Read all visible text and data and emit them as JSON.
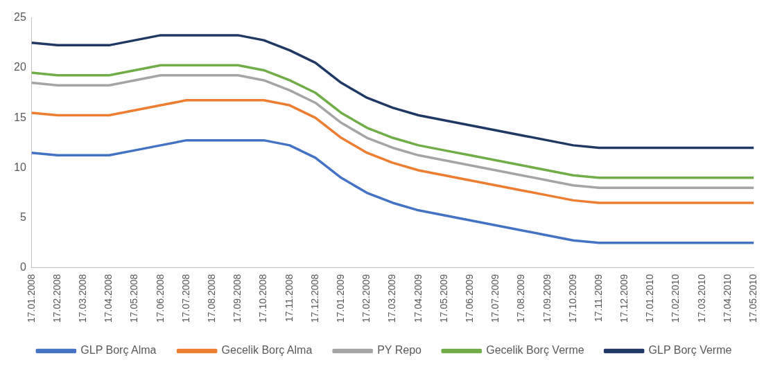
{
  "chart_data": {
    "type": "line",
    "categories": [
      "17.01.2008",
      "17.02.2008",
      "17.03.2008",
      "17.04.2008",
      "17.05.2008",
      "17.06.2008",
      "17.07.2008",
      "17.08.2008",
      "17.09.2008",
      "17.10.2008",
      "17.11.2008",
      "17.12.2008",
      "17.01.2009",
      "17.02.2009",
      "17.03.2009",
      "17.04.2009",
      "17.05.2009",
      "17.06.2009",
      "17.07.2009",
      "17.08.2009",
      "17.09.2009",
      "17.10.2009",
      "17.11.2009",
      "17.12.2009",
      "17.01.2010",
      "17.02.2010",
      "17.03.2010",
      "17.04.2010",
      "17.05.2010"
    ],
    "series": [
      {
        "name": "GLP Borç Alma",
        "color": "#4472c4",
        "values": [
          11.5,
          11.25,
          11.25,
          11.25,
          11.75,
          12.25,
          12.75,
          12.75,
          12.75,
          12.75,
          12.25,
          11,
          9,
          7.5,
          6.5,
          5.75,
          5.25,
          4.75,
          4.25,
          3.75,
          3.25,
          2.75,
          2.5,
          2.5,
          2.5,
          2.5,
          2.5,
          2.5,
          2.5
        ]
      },
      {
        "name": "Gecelik Borç Alma",
        "color": "#ed7d31",
        "values": [
          15.5,
          15.25,
          15.25,
          15.25,
          15.75,
          16.25,
          16.75,
          16.75,
          16.75,
          16.75,
          16.25,
          15,
          13,
          11.5,
          10.5,
          9.75,
          9.25,
          8.75,
          8.25,
          7.75,
          7.25,
          6.75,
          6.5,
          6.5,
          6.5,
          6.5,
          6.5,
          6.5,
          6.5
        ]
      },
      {
        "name": "PY Repo",
        "color": "#a5a5a5",
        "values": [
          18.5,
          18.25,
          18.25,
          18.25,
          18.75,
          19.25,
          19.25,
          19.25,
          19.25,
          18.75,
          17.75,
          16.5,
          14.5,
          13,
          12,
          11.25,
          10.75,
          10.25,
          9.75,
          9.25,
          8.75,
          8.25,
          8,
          8,
          8,
          8,
          8,
          8,
          8
        ]
      },
      {
        "name": "Gecelik Borç Verme",
        "color": "#70ad47",
        "values": [
          19.5,
          19.25,
          19.25,
          19.25,
          19.75,
          20.25,
          20.25,
          20.25,
          20.25,
          19.75,
          18.75,
          17.5,
          15.5,
          14,
          13,
          12.25,
          11.75,
          11.25,
          10.75,
          10.25,
          9.75,
          9.25,
          9,
          9,
          9,
          9,
          9,
          9,
          9
        ]
      },
      {
        "name": "GLP Borç Verme",
        "color": "#203864",
        "values": [
          22.5,
          22.25,
          22.25,
          22.25,
          22.75,
          23.25,
          23.25,
          23.25,
          23.25,
          22.75,
          21.75,
          20.5,
          18.5,
          17,
          16,
          15.25,
          14.75,
          14.25,
          13.75,
          13.25,
          12.75,
          12.25,
          12,
          12,
          12,
          12,
          12,
          12,
          12
        ]
      }
    ],
    "ylim": [
      0,
      25
    ],
    "yticks": [
      0,
      5,
      10,
      15,
      20,
      25
    ],
    "legend": "bottom",
    "marker": "none",
    "line_style": "solid"
  }
}
